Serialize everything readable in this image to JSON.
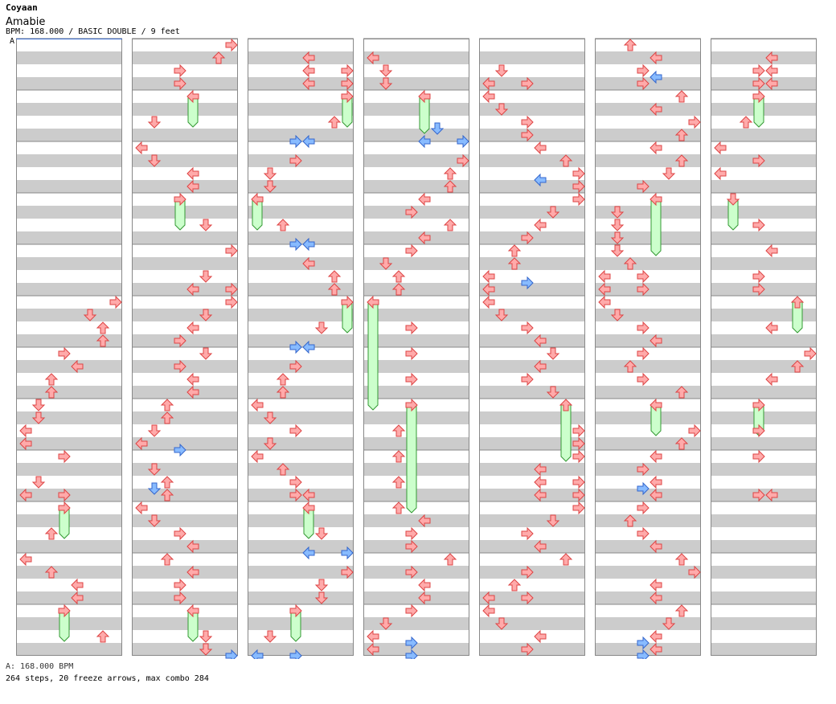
{
  "header": {
    "artist": "Coyaan",
    "song_title": "Amabie",
    "meta": "BPM: 168.000 / BASIC DOUBLE / 9 feet",
    "bpm_marker": "A"
  },
  "footer": {
    "bpm_line": "A: 168.000 BPM",
    "stats_line": "264 steps, 20 freeze arrows, max combo 284"
  },
  "colors": {
    "arrow_red": "#ffaaaa",
    "arrow_red_stroke": "#dd4444",
    "arrow_blue": "#88bbff",
    "arrow_blue_stroke": "#3366cc",
    "freeze_fill": "#ccffcc",
    "freeze_stroke": "#339933",
    "stripe_gray": "#cccccc"
  },
  "chart_data": {
    "type": "table",
    "columns": 7,
    "measures_per_column": 12,
    "lanes": [
      "L1",
      "D1",
      "U1",
      "R1",
      "L2",
      "D2",
      "U2",
      "R2"
    ],
    "steps_total": 264,
    "freeze_arrows": 20,
    "max_combo": 284
  }
}
